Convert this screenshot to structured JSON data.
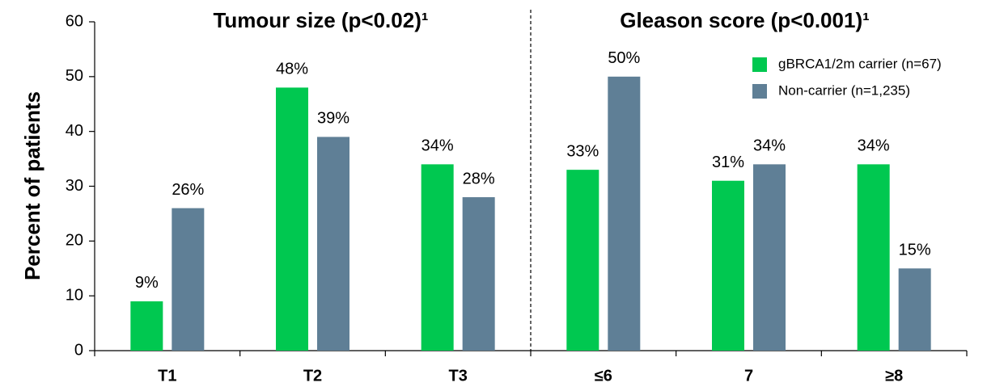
{
  "chart_data": {
    "type": "bar",
    "titles": [
      "Tumour size (p<0.02)¹",
      "Gleason score (p<0.001)¹"
    ],
    "ylabel": "Percent of patients",
    "categories": [
      "T1",
      "T2",
      "T3",
      "≤6",
      "7",
      "≥8"
    ],
    "series": [
      {
        "name": "gBRCA1/2m carrier (n=67)",
        "color": "#00c850",
        "values": [
          9,
          48,
          34,
          33,
          31,
          34
        ],
        "value_labels": [
          "9%",
          "48%",
          "34%",
          "33%",
          "31%",
          "34%"
        ]
      },
      {
        "name": "Non-carrier (n=1,235)",
        "color": "#5f7f96",
        "values": [
          26,
          39,
          28,
          50,
          34,
          15
        ],
        "value_labels": [
          "26%",
          "39%",
          "28%",
          "50%",
          "34%",
          "15%"
        ]
      }
    ],
    "ylim": [
      0,
      60
    ],
    "yticks": [
      0,
      10,
      20,
      30,
      40,
      50,
      60
    ],
    "grid": false,
    "legend": "upper right"
  }
}
